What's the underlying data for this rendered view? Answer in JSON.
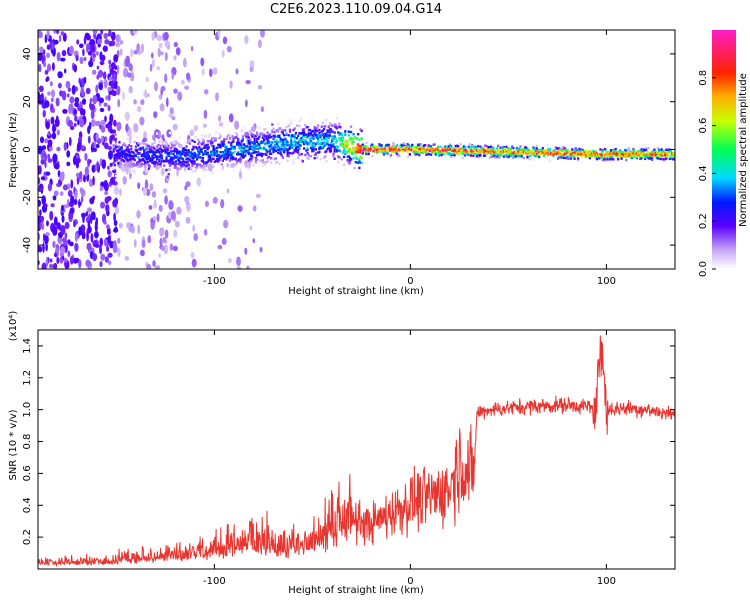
{
  "title": "C2E6.2023.110.09.04.G14",
  "chart_data": [
    {
      "type": "heatmap",
      "xlabel": "Height of straight line (km)",
      "ylabel": "Frequency (Hz)",
      "xlim": [
        -190,
        135
      ],
      "ylim": [
        -50,
        50
      ],
      "xticks": [
        -100,
        0,
        100
      ],
      "yticks": [
        -40,
        -20,
        0,
        20,
        40
      ],
      "colorbar": {
        "label": "Normalized spectral amplitude",
        "range": [
          0,
          1
        ],
        "ticks": [
          0.0,
          0.2,
          0.4,
          0.6,
          0.8
        ]
      },
      "ridge": [
        {
          "x": -150,
          "f": -2,
          "amp": 0.25
        },
        {
          "x": -120,
          "f": -3,
          "amp": 0.3
        },
        {
          "x": -90,
          "f": 0,
          "amp": 0.35
        },
        {
          "x": -60,
          "f": 3,
          "amp": 0.38
        },
        {
          "x": -40,
          "f": 4,
          "amp": 0.4
        },
        {
          "x": -25,
          "f": 0,
          "amp": 0.95
        },
        {
          "x": 0,
          "f": 0,
          "amp": 0.9
        },
        {
          "x": 50,
          "f": -1,
          "amp": 0.85
        },
        {
          "x": 95,
          "f": -2,
          "amp": 0.85
        },
        {
          "x": 135,
          "f": -2,
          "amp": 0.8
        }
      ]
    },
    {
      "type": "line",
      "xlabel": "Height of straight line (km)",
      "ylabel": "SNR (10 * v/v)",
      "yscale_note": "(x10⁴)",
      "xlim": [
        -190,
        135
      ],
      "ylim": [
        0,
        1.5
      ],
      "xticks": [
        -100,
        0,
        100
      ],
      "yticks": [
        0.2,
        0.4,
        0.6,
        0.8,
        1.0,
        1.2,
        1.4
      ],
      "series": [
        {
          "color": "#e8352f",
          "x": [
            -190,
            -160,
            -140,
            -120,
            -100,
            -80,
            -60,
            -50,
            -40,
            -30,
            -20,
            -10,
            0,
            10,
            20,
            25,
            30,
            32,
            34,
            40,
            60,
            80,
            90,
            95,
            97,
            100,
            110,
            120,
            135
          ],
          "y": [
            0.04,
            0.04,
            0.06,
            0.08,
            0.11,
            0.16,
            0.13,
            0.16,
            0.22,
            0.3,
            0.28,
            0.35,
            0.42,
            0.45,
            0.5,
            0.68,
            0.62,
            0.54,
            0.98,
            1.0,
            1.02,
            1.03,
            1.02,
            1.0,
            1.47,
            1.0,
            1.01,
            1.0,
            0.97
          ]
        }
      ]
    }
  ]
}
